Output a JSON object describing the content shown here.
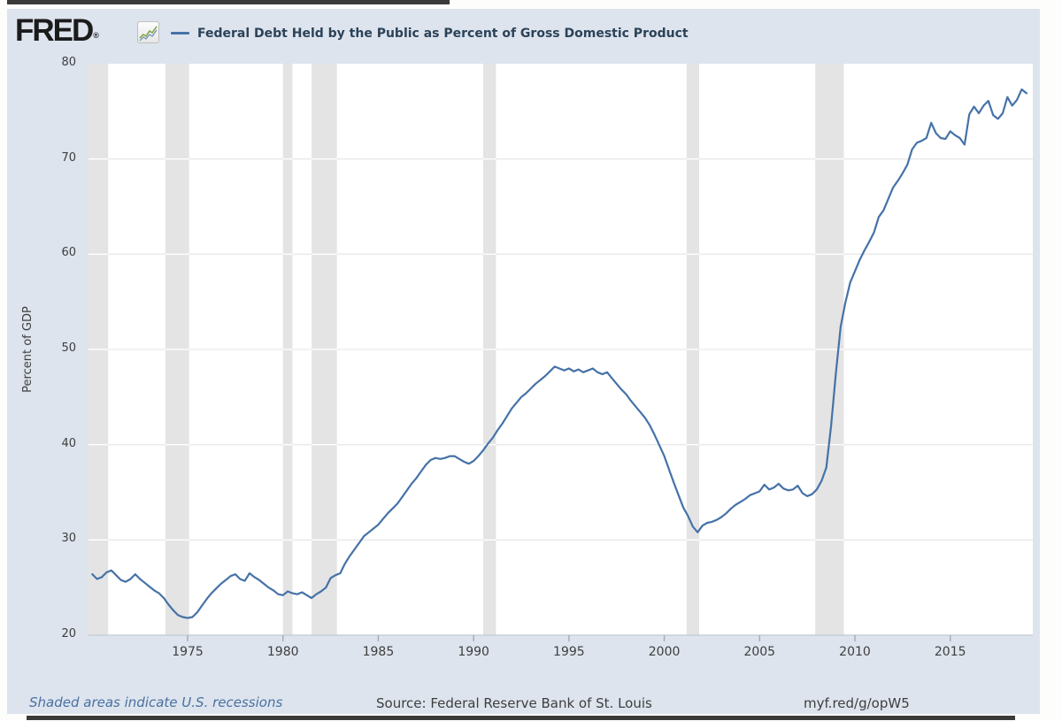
{
  "header": {
    "logo_text": "FRED",
    "registered_mark": "®",
    "series_label": "Federal Debt Held by the Public as Percent of Gross Domestic Product"
  },
  "footer": {
    "recession_note": "Shaded areas indicate U.S. recessions",
    "source": "Source: Federal Reserve Bank of St. Louis",
    "short_url": "myf.red/g/opW5"
  },
  "colors": {
    "card_bg": "#dde4ee",
    "plot_bg": "#ffffff",
    "line": "#4572a7",
    "recession_band": "#e4e4e4",
    "gridline": "#e9e9e9",
    "gridline_over_band": "#ffffff",
    "axis_line": "#c8cfd9",
    "tick": "#a4aebc",
    "axis_text": "#3e3e3e",
    "legend_text": "#2c4257",
    "footer_link": "#4a70a0"
  },
  "chart_data": {
    "type": "line",
    "title": "Federal Debt Held by the Public as Percent of Gross Domestic Product",
    "xlabel": "",
    "ylabel": "Percent of GDP",
    "xlim": [
      1969.8,
      2019.33
    ],
    "ylim": [
      20,
      80
    ],
    "x_ticks": [
      1975,
      1980,
      1985,
      1990,
      1995,
      2000,
      2005,
      2010,
      2015
    ],
    "y_ticks": [
      20,
      30,
      40,
      50,
      60,
      70,
      80
    ],
    "grid": "horizontal",
    "legend_position": "top-header",
    "recessions_note": "gray vertical bands mark U.S. recessions",
    "recessions": [
      [
        1969.8,
        1970.83
      ],
      [
        1973.83,
        1975.08
      ],
      [
        1980.0,
        1980.5
      ],
      [
        1981.5,
        1982.83
      ],
      [
        1990.5,
        1991.17
      ],
      [
        2001.17,
        2001.83
      ],
      [
        2007.92,
        2009.42
      ]
    ],
    "series": [
      {
        "name": "Federal Debt Held by the Public as Percent of Gross Domestic Product",
        "units": "Percent of GDP",
        "frequency": "quarterly",
        "start_year": 1970.0,
        "period_years": 0.25,
        "values": [
          26.4,
          25.9,
          26.1,
          26.6,
          26.8,
          26.3,
          25.8,
          25.6,
          25.9,
          26.4,
          25.9,
          25.5,
          25.1,
          24.7,
          24.4,
          23.9,
          23.2,
          22.6,
          22.1,
          21.9,
          21.8,
          21.9,
          22.4,
          23.1,
          23.8,
          24.4,
          24.9,
          25.4,
          25.8,
          26.2,
          26.4,
          25.9,
          25.7,
          26.5,
          26.1,
          25.8,
          25.4,
          25.0,
          24.7,
          24.3,
          24.2,
          24.6,
          24.4,
          24.3,
          24.5,
          24.2,
          23.9,
          24.3,
          24.6,
          25.0,
          26.0,
          26.3,
          26.5,
          27.5,
          28.3,
          29.0,
          29.7,
          30.4,
          30.8,
          31.2,
          31.6,
          32.2,
          32.8,
          33.3,
          33.8,
          34.5,
          35.2,
          35.9,
          36.5,
          37.2,
          37.9,
          38.4,
          38.6,
          38.5,
          38.6,
          38.8,
          38.8,
          38.5,
          38.2,
          38.0,
          38.3,
          38.8,
          39.4,
          40.1,
          40.7,
          41.5,
          42.2,
          43.0,
          43.8,
          44.4,
          45.0,
          45.4,
          45.9,
          46.4,
          46.8,
          47.2,
          47.7,
          48.2,
          48.0,
          47.8,
          48.0,
          47.7,
          47.9,
          47.6,
          47.8,
          48.0,
          47.6,
          47.4,
          47.6,
          47.0,
          46.4,
          45.8,
          45.3,
          44.6,
          44.0,
          43.4,
          42.8,
          42.0,
          41.0,
          39.9,
          38.8,
          37.4,
          36.0,
          34.7,
          33.4,
          32.5,
          31.4,
          30.8,
          31.5,
          31.8,
          31.9,
          32.1,
          32.4,
          32.8,
          33.3,
          33.7,
          34.0,
          34.3,
          34.7,
          34.9,
          35.1,
          35.8,
          35.3,
          35.5,
          35.9,
          35.4,
          35.2,
          35.3,
          35.7,
          34.9,
          34.6,
          34.8,
          35.3,
          36.2,
          37.6,
          42.0,
          47.5,
          52.4,
          54.9,
          57.0,
          58.2,
          59.4,
          60.4,
          61.3,
          62.3,
          63.9,
          64.6,
          65.8,
          67.0,
          67.7,
          68.5,
          69.4,
          71.0,
          71.7,
          71.9,
          72.2,
          73.8,
          72.7,
          72.2,
          72.1,
          72.9,
          72.5,
          72.2,
          71.5,
          74.7,
          75.5,
          74.8,
          75.6,
          76.1,
          74.6,
          74.2,
          74.8,
          76.5,
          75.6,
          76.2,
          77.3,
          76.9
        ]
      }
    ]
  }
}
